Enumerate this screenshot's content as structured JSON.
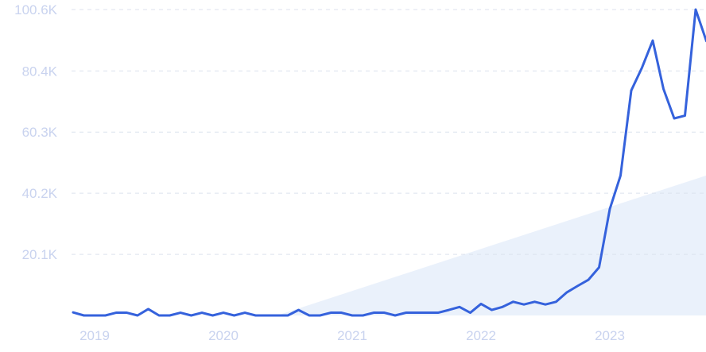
{
  "chart_data": {
    "type": "line",
    "title": "",
    "xlabel": "",
    "ylabel": "",
    "grid": true,
    "legend": "none",
    "ylim": [
      0,
      100600
    ],
    "y_ticks": [
      {
        "value": 20100,
        "label": "20.1K"
      },
      {
        "value": 40200,
        "label": "40.2K"
      },
      {
        "value": 60300,
        "label": "60.3K"
      },
      {
        "value": 80400,
        "label": "80.4K"
      },
      {
        "value": 100600,
        "label": "100.6K"
      }
    ],
    "x_ticks": [
      "2019",
      "2020",
      "2021",
      "2022",
      "2023"
    ],
    "colors": {
      "line": "#3562dc",
      "trend_fill": "#e6effa",
      "grid": "#dce2ee",
      "tick_text": "#c9d3ef"
    },
    "series": [
      {
        "values": [
          1000,
          0,
          0,
          0,
          900,
          900,
          0,
          2100,
          0,
          0,
          900,
          0,
          900,
          0,
          900,
          0,
          900,
          0,
          0,
          0,
          0,
          1800,
          0,
          0,
          900,
          900,
          0,
          0,
          900,
          900,
          0,
          900,
          900,
          900,
          900,
          1800,
          2800,
          900,
          3800,
          1800,
          2800,
          4500,
          3600,
          4500,
          3600,
          4500,
          7600,
          9700,
          11700,
          15800,
          35000,
          46000,
          74000,
          81500,
          90400,
          74500,
          64800,
          65700,
          100600,
          90200
        ]
      }
    ],
    "trend": {
      "start_month": "2020-06",
      "start_value": 0,
      "end_month": "2023-11",
      "end_value": 46000
    }
  }
}
